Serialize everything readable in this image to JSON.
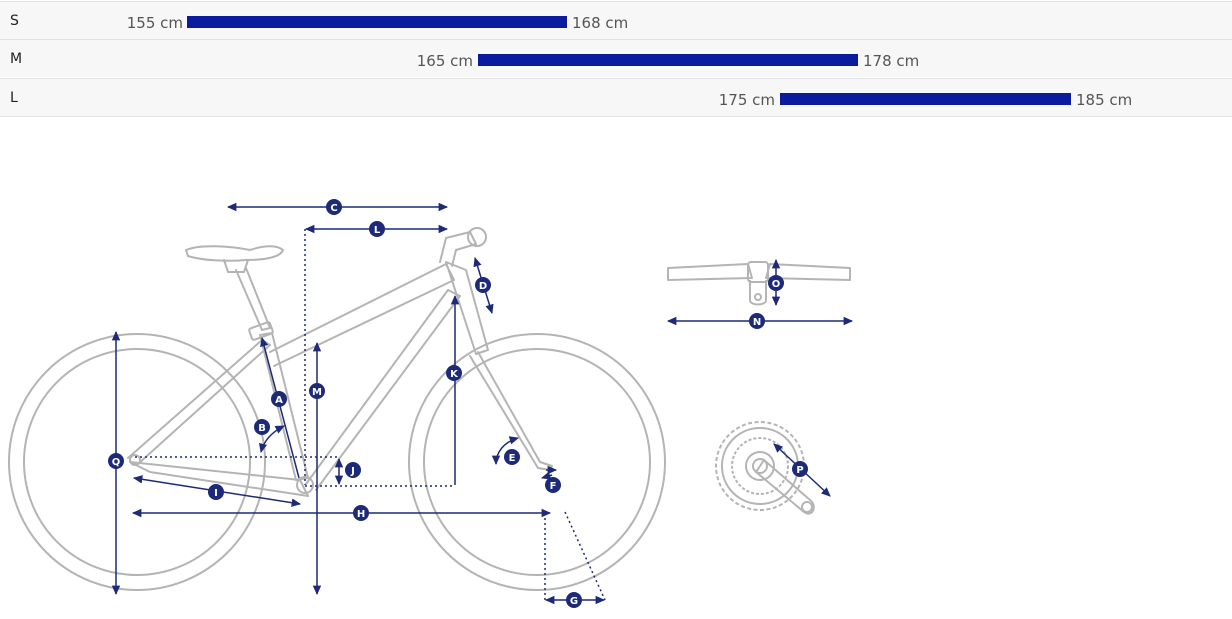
{
  "size_chart": {
    "rows": [
      {
        "size": "S",
        "min": "155 cm",
        "max": "168 cm",
        "min_cm": 155,
        "max_cm": 168
      },
      {
        "size": "M",
        "min": "165 cm",
        "max": "178 cm",
        "min_cm": 165,
        "max_cm": 178
      },
      {
        "size": "L",
        "min": "175 cm",
        "max": "185 cm",
        "min_cm": 175,
        "max_cm": 185
      }
    ],
    "bar_color": "#0a1b9e"
  },
  "geometry_labels": {
    "A": "A",
    "B": "B",
    "C": "C",
    "D": "D",
    "E": "E",
    "F": "F",
    "G": "G",
    "H": "H",
    "I": "I",
    "J": "J",
    "K": "K",
    "L": "L",
    "M": "M",
    "N": "N",
    "O": "O",
    "P": "P",
    "Q": "Q"
  },
  "colors": {
    "dimension": "#1c2a78",
    "outline": "#b4b4b4"
  },
  "icons": [
    "bike-frame-icon",
    "handlebar-icon",
    "crankset-icon"
  ]
}
